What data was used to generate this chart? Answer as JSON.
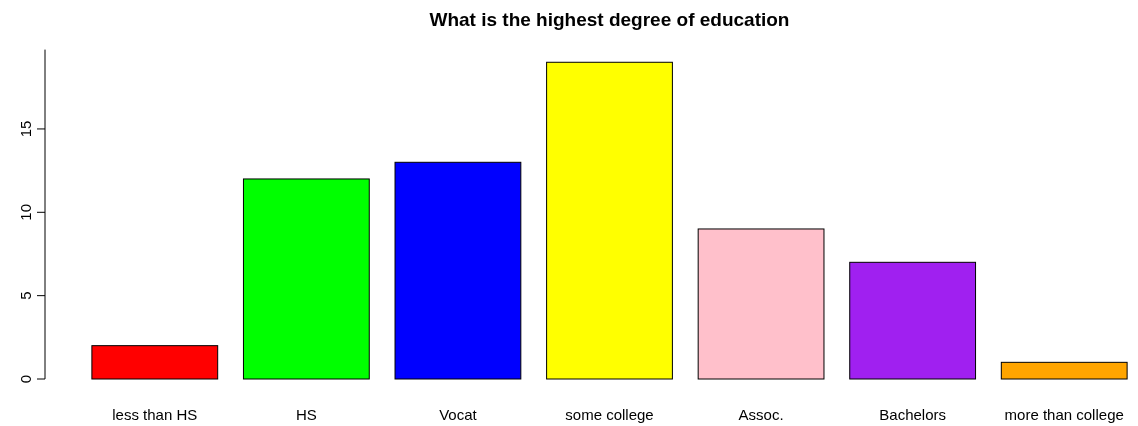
{
  "chart_data": {
    "type": "bar",
    "title": "What is the highest degree of education",
    "categories": [
      "less than HS",
      "HS",
      "Vocat",
      "some college",
      "Assoc.",
      "Bachelors",
      "more than college"
    ],
    "values": [
      2,
      12,
      13,
      19,
      9,
      7,
      1
    ],
    "colors": [
      "#ff0000",
      "#00ff00",
      "#0000ff",
      "#ffff00",
      "#ffc0cb",
      "#a020f0",
      "#ffa500"
    ],
    "ylim": [
      0,
      19.76
    ],
    "yticks": [
      0,
      5,
      10,
      15
    ],
    "grid": false
  }
}
